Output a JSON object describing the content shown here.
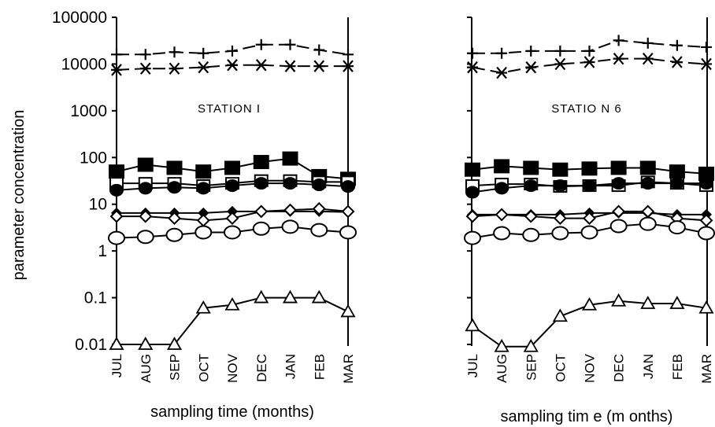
{
  "chart_data": [
    {
      "type": "line",
      "title": "STATION I",
      "ylabel": "parameter concentration",
      "xlabel": "sampling time (months)",
      "yscale": "log",
      "ylim": [
        0.01,
        100000
      ],
      "yticks": [
        "100000",
        "10000",
        "1000",
        "100",
        "10",
        "1",
        "0.1",
        "0.01"
      ],
      "categories": [
        "JUL",
        "AUG",
        "SEP",
        "OCT",
        "NOV",
        "DEC",
        "JAN",
        "FEB",
        "MAR"
      ],
      "grid": false,
      "series": [
        {
          "marker": "plus",
          "line": "dashed",
          "values": [
            16000,
            16000,
            18000,
            17000,
            19000,
            26000,
            26000,
            20000,
            16000
          ]
        },
        {
          "marker": "star",
          "line": "dashed",
          "values": [
            7500,
            8000,
            8000,
            8500,
            9500,
            9500,
            9000,
            9000,
            9000
          ]
        },
        {
          "marker": "square-filled",
          "line": "solid",
          "values": [
            50,
            70,
            60,
            50,
            60,
            80,
            95,
            40,
            35
          ]
        },
        {
          "marker": "square-open",
          "line": "solid",
          "values": [
            28,
            28,
            28,
            25,
            28,
            32,
            32,
            30,
            30
          ]
        },
        {
          "marker": "circle-filled",
          "line": "solid",
          "values": [
            20,
            22,
            23,
            22,
            25,
            28,
            28,
            26,
            24
          ]
        },
        {
          "marker": "diamond-filled",
          "line": "solid",
          "values": [
            6.5,
            6.5,
            6.5,
            6.5,
            7,
            7,
            7,
            7,
            6.8
          ]
        },
        {
          "marker": "diamond-open",
          "line": "solid",
          "values": [
            5.5,
            5.5,
            5,
            4.5,
            5,
            7,
            7.5,
            8,
            7
          ]
        },
        {
          "marker": "circle-open",
          "line": "solid",
          "values": [
            1.9,
            2,
            2.2,
            2.5,
            2.5,
            3,
            3.3,
            2.8,
            2.5
          ]
        },
        {
          "marker": "triangle-open",
          "line": "solid",
          "values": [
            0.01,
            0.01,
            0.01,
            0.06,
            0.07,
            0.1,
            0.1,
            0.1,
            0.05
          ]
        }
      ]
    },
    {
      "type": "line",
      "title": "STATIO N 6",
      "xlabel": "sampling tim e (m onths)",
      "yscale": "log",
      "ylim": [
        0.01,
        100000
      ],
      "categories": [
        "JUL",
        "AUG",
        "SEP",
        "OCT",
        "NOV",
        "DEC",
        "JAN",
        "FEB",
        "MAR"
      ],
      "grid": false,
      "series": [
        {
          "marker": "plus",
          "line": "dashed",
          "values": [
            17000,
            17000,
            19000,
            19000,
            19000,
            32000,
            28000,
            25000,
            23000
          ]
        },
        {
          "marker": "star",
          "line": "dashed",
          "values": [
            8500,
            6500,
            8500,
            10000,
            11000,
            13000,
            13000,
            11000,
            10000
          ]
        },
        {
          "marker": "square-filled",
          "line": "solid",
          "values": [
            55,
            65,
            60,
            55,
            58,
            60,
            60,
            50,
            45
          ]
        },
        {
          "marker": "square-open",
          "line": "solid",
          "values": [
            25,
            27,
            27,
            24,
            25,
            25,
            30,
            28,
            25
          ]
        },
        {
          "marker": "circle-filled",
          "line": "solid",
          "values": [
            18,
            22,
            25,
            25,
            25,
            28,
            28,
            28,
            28
          ]
        },
        {
          "marker": "diamond-filled",
          "line": "solid",
          "values": [
            6,
            6,
            6,
            6,
            6.5,
            6.5,
            6.5,
            6,
            6
          ]
        },
        {
          "marker": "diamond-open",
          "line": "solid",
          "values": [
            5.5,
            6,
            5.5,
            5,
            5,
            7,
            7,
            5,
            4.5
          ]
        },
        {
          "marker": "circle-open",
          "line": "solid",
          "values": [
            1.9,
            2.4,
            2.2,
            2.4,
            2.5,
            3.4,
            3.8,
            3.2,
            2.4
          ]
        },
        {
          "marker": "triangle-open",
          "line": "solid",
          "values": [
            0.025,
            0.009,
            0.009,
            0.04,
            0.07,
            0.085,
            0.075,
            0.075,
            0.06
          ]
        }
      ]
    }
  ]
}
